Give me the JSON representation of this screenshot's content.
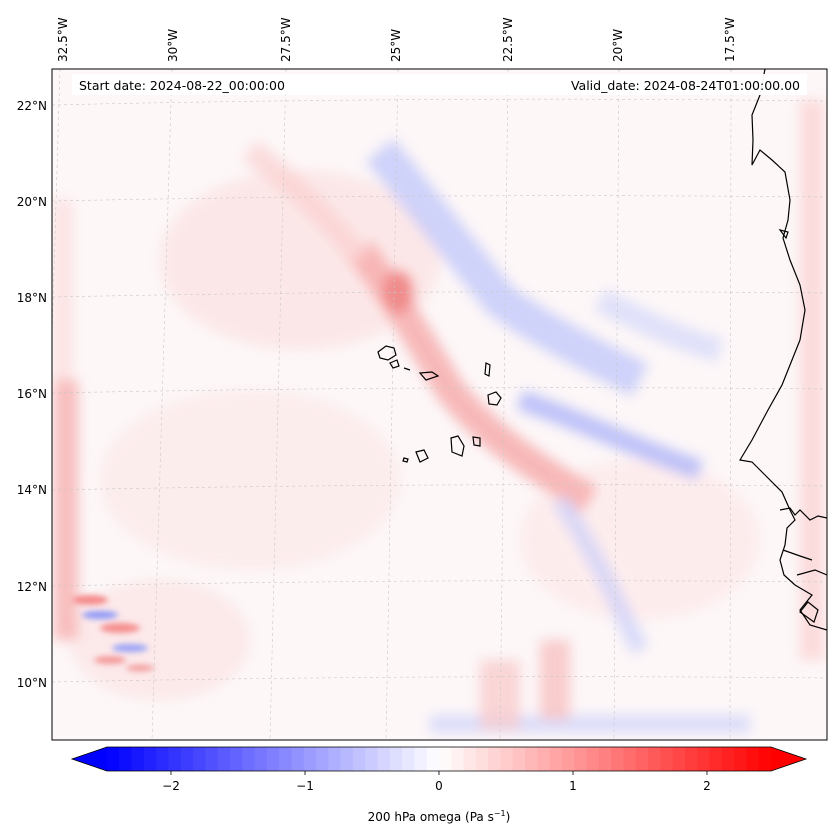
{
  "map": {
    "start_date_label": "Start date: 2024-08-22_00:00:00",
    "valid_date_label": "Valid_date: 2024-08-24T01:00:00.00",
    "lon_labels": [
      "32.5°W",
      "30°W",
      "27.5°W",
      "25°W",
      "22.5°W",
      "20°W",
      "17.5°W"
    ],
    "lat_labels": [
      "22°N",
      "20°N",
      "18°N",
      "16°N",
      "14°N",
      "12°N",
      "10°N"
    ],
    "field": "200 hPa omega",
    "colormap": [
      "#0000ff",
      "#ffffff",
      "#ff0000"
    ]
  },
  "colorbar": {
    "label_prefix": "200 hPa omega (Pa s",
    "label_exp": "−1",
    "label_suffix": ")",
    "ticks": [
      "−2",
      "−1",
      "0",
      "1",
      "2"
    ],
    "min": -2.7,
    "max": 2.7
  }
}
